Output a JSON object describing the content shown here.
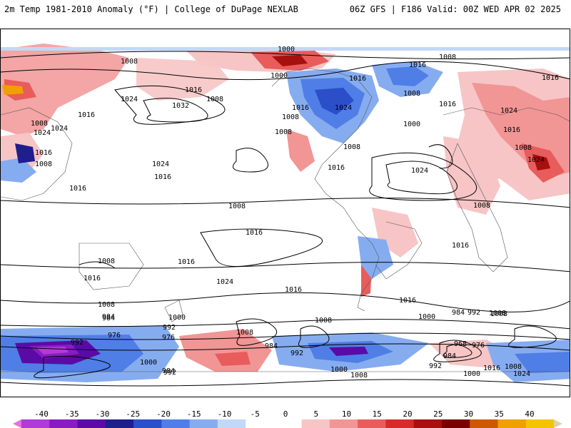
{
  "header": {
    "title_left": "2m Temp 1981-2010 Anomaly (°F) | College of DuPage NEXLAB",
    "title_right": "06Z GFS | F186 Valid: 00Z WED APR 02 2025"
  },
  "colorbar": {
    "labels": [
      "-40",
      "-35",
      "-30",
      "-25",
      "-20",
      "-15",
      "-10",
      "-5",
      "0",
      "5",
      "10",
      "15",
      "20",
      "25",
      "30",
      "35",
      "40"
    ],
    "colors": [
      "#e36fe3",
      "#b23ad8",
      "#8a1bc2",
      "#5b0aa6",
      "#1e1e8c",
      "#2a4fc8",
      "#4f7ee6",
      "#86acf0",
      "#c2d8f8",
      "#ffffff",
      "#ffffff",
      "#f7c5c5",
      "#f29595",
      "#e85c5c",
      "#d62b2b",
      "#a80f0f",
      "#7a0000",
      "#cc5a00",
      "#f0a000",
      "#f4c400",
      "#ddd0b0"
    ]
  },
  "isobar_labels": [
    "1000",
    "1008",
    "1016",
    "1024",
    "1032",
    "1008",
    "1016",
    "1024",
    "1008",
    "1016",
    "1008",
    "1016",
    "1024",
    "1016",
    "1024",
    "1000",
    "1016",
    "1008",
    "1016",
    "1008",
    "1024",
    "1016",
    "1008",
    "1016",
    "1024",
    "1008",
    "1000",
    "1016",
    "1008",
    "1024",
    "1016",
    "1008",
    "1024",
    "1016",
    "1008",
    "1016",
    "1016",
    "1008",
    "1016",
    "1008",
    "1016",
    "1024",
    "1000",
    "984",
    "992",
    "1008",
    "1008",
    "984",
    "1000",
    "992",
    "976",
    "976",
    "984",
    "992",
    "1016",
    "1008",
    "984",
    "992",
    "1000",
    "992",
    "984",
    "1008",
    "968",
    "976",
    "1000",
    "1008",
    "1016",
    "1024",
    "1000",
    "1008",
    "1016",
    "1008",
    "984",
    "992"
  ]
}
